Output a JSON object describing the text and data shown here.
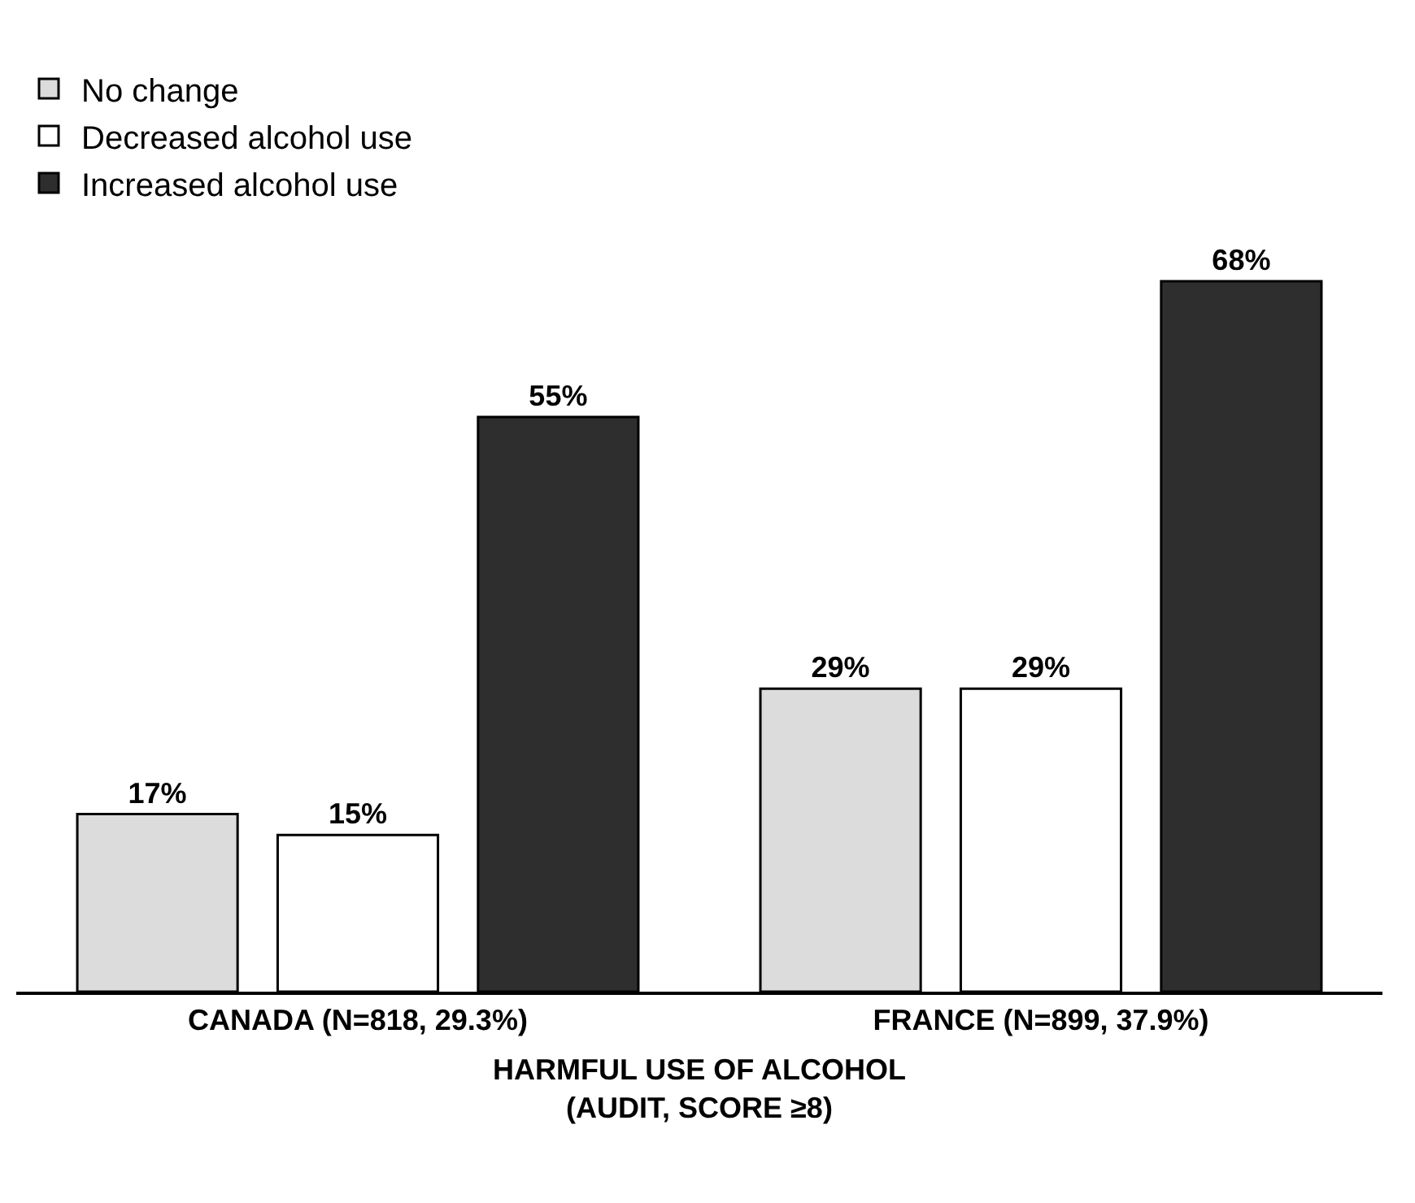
{
  "chart_data": {
    "type": "bar",
    "xlabel": "HARMFUL USE OF ALCOHOL\n(AUDIT, SCORE ≥8)",
    "categories": [
      "CANADA (N=818, 29.3%)",
      "FRANCE (N=899, 37.9%)"
    ],
    "series": [
      {
        "name": "No change",
        "color": "#dcdcdc",
        "values": [
          17,
          29
        ],
        "value_labels": [
          "17%",
          "29%"
        ]
      },
      {
        "name": "Decreased alcohol use",
        "color": "#ffffff",
        "values": [
          15,
          29
        ],
        "value_labels": [
          "15%",
          "29%"
        ]
      },
      {
        "name": "Increased alcohol use",
        "color": "#2e2e2e",
        "values": [
          55,
          68
        ],
        "value_labels": [
          "55%",
          "68%"
        ]
      }
    ],
    "legend": "top left"
  }
}
